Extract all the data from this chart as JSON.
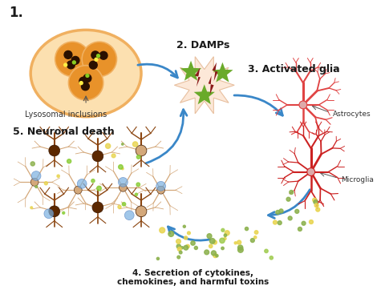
{
  "bg_color": "#ffffff",
  "labels": {
    "step1": "1.",
    "step1_sub": "Lysosomal inclusions",
    "step2": "2. DAMPs",
    "step3": "3. Activated glia",
    "step4": "4. Secretion of cytokines,\nchemokines, and harmful toxins",
    "step5": "5. Neuronal death",
    "astrocytes": "Astrocytes",
    "microglia": "Microglia"
  },
  "arrow_color": "#3a87c8",
  "label_color": "#1a1a1a",
  "star_green": "#6aaa2a",
  "bolt_dark": "#8b1a1a",
  "dot_green": "#8ab04a",
  "dot_yellow": "#e8d44d",
  "glia_red": "#cc2222",
  "glia_red2": "#e04444",
  "neuron_dark": "#5c2800",
  "neuron_mid": "#8b4510",
  "neuron_light": "#d4a87a",
  "cell_outer": "#f0b060",
  "cell_inner": "#e8922a",
  "cell_fill": "#fce0b0",
  "cell_inclusion": "#2a1000",
  "blue_dot": "#7ab0e0"
}
